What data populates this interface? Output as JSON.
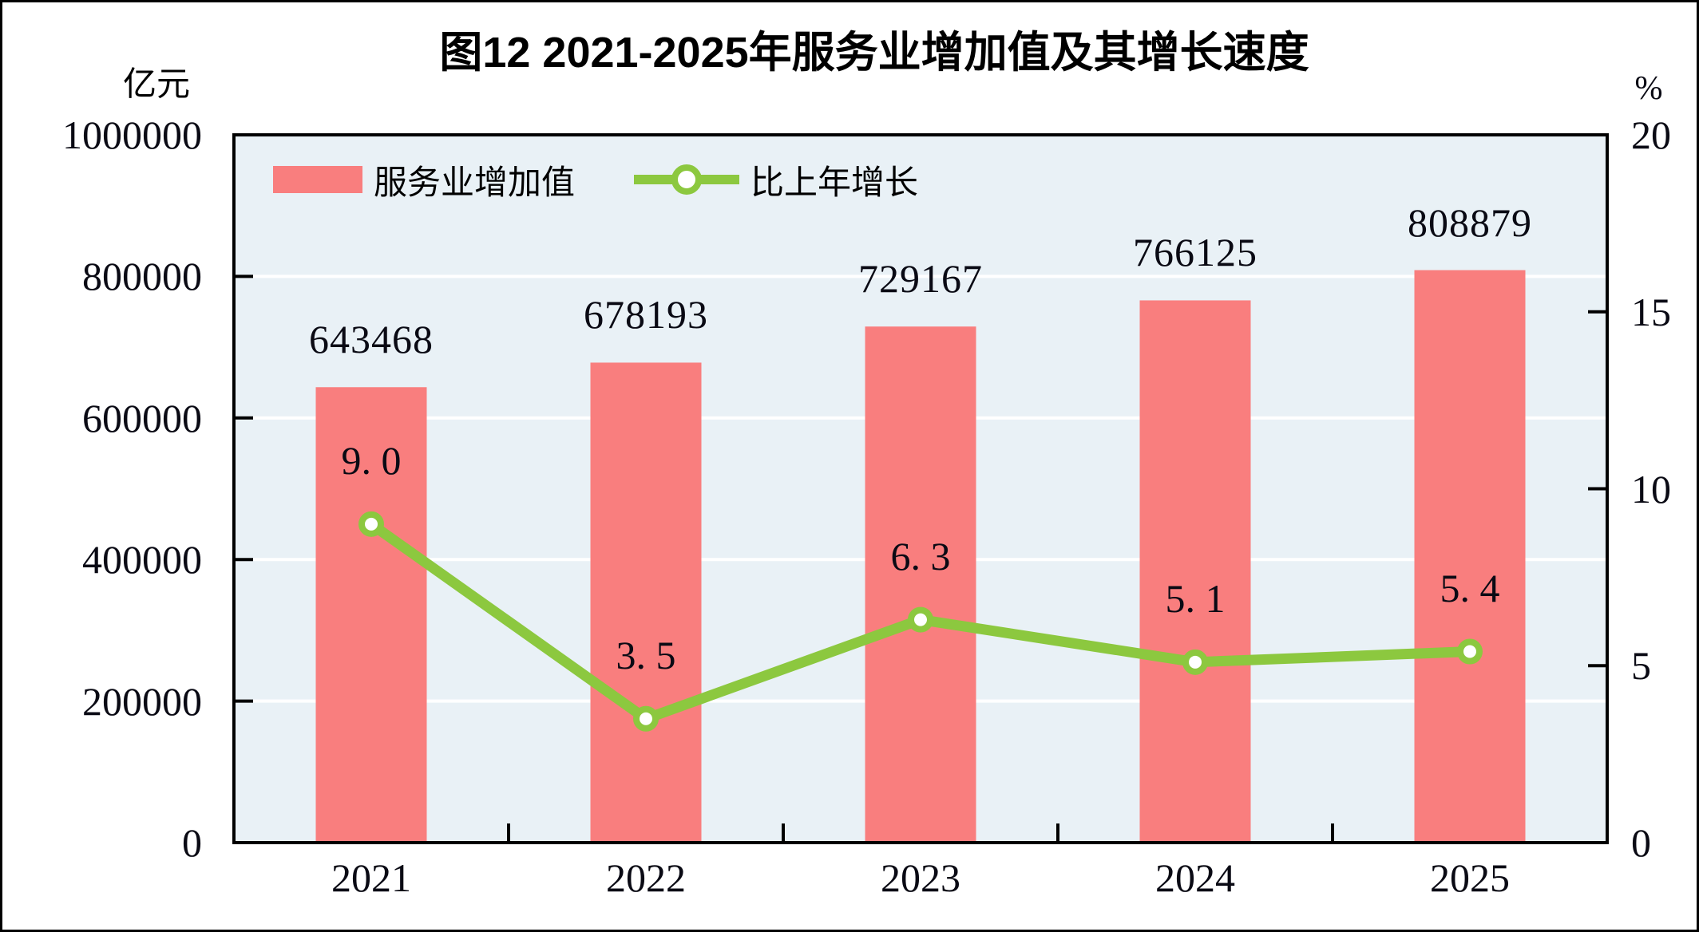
{
  "chart_data": {
    "type": "bar",
    "subtype": "bar-line-combo",
    "title": "图12  2021-2025年服务业增加值及其增长速度",
    "categories": [
      "2021",
      "2022",
      "2023",
      "2024",
      "2025"
    ],
    "series": [
      {
        "name": "服务业增加值",
        "kind": "bar",
        "axis": "left",
        "color": "#F97E7E",
        "values": [
          643468,
          678193,
          729167,
          766125,
          808879
        ],
        "labels": [
          "643468",
          "678193",
          "729167",
          "766125",
          "808879"
        ]
      },
      {
        "name": "比上年增长",
        "kind": "line",
        "axis": "right",
        "color": "#8CC83F",
        "marker": "circle-white-fill-green-ring",
        "values": [
          9.0,
          3.5,
          6.3,
          5.1,
          5.4
        ],
        "labels": [
          "9. 0",
          "3. 5",
          "6. 3",
          "5. 1",
          "5. 4"
        ]
      }
    ],
    "left_axis": {
      "unit": "亿元",
      "min": 0,
      "max": 1000000,
      "tick_labels": [
        "1000000",
        "800000",
        "600000",
        "400000",
        "200000",
        "0"
      ]
    },
    "right_axis": {
      "unit": "%",
      "min": 0,
      "max": 20,
      "tick_labels": [
        "20",
        "15",
        "10",
        "5",
        "0"
      ]
    },
    "legend_position": "top-left-inside",
    "grid": "horizontal-white-lines-at-left-ticks",
    "plot_bg": "#E9F1F6",
    "grid_color": "#FFFFFF",
    "axis_color": "#000000",
    "text_color": "#000000"
  }
}
